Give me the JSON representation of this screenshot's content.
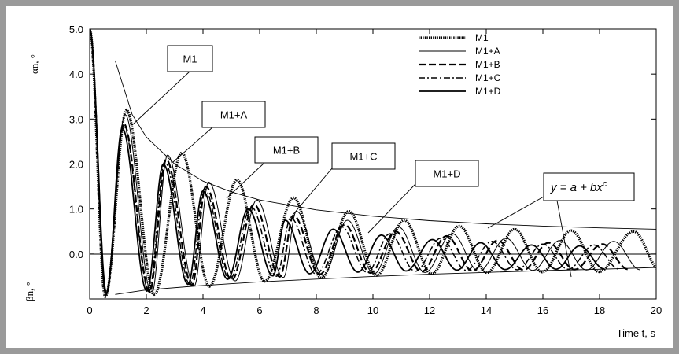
{
  "chart_data": {
    "type": "line",
    "title": "",
    "xlabel": "Time t, s",
    "ylabel_top": "αn, °",
    "ylabel_bottom": "βn, °",
    "xlim": [
      0,
      20
    ],
    "ylim": [
      -1.0,
      5.0
    ],
    "x_ticks": [
      "0",
      "2",
      "4",
      "6",
      "8",
      "10",
      "12",
      "14",
      "16",
      "18",
      "20"
    ],
    "y_ticks": [
      "5.0",
      "4.0",
      "3.0",
      "2.0",
      "1.0",
      "0.0"
    ],
    "grid": false,
    "legend_position": "top-right",
    "legend": [
      "M1",
      "M1+A",
      "M1+B",
      "M1+C",
      "M1+D"
    ],
    "annotations": [
      "M1",
      "M1+A",
      "M1+B",
      "M1+C",
      "M1+D"
    ],
    "fit_label": "y = a + bx",
    "fit_label_sup": "c",
    "series": [
      {
        "name": "M1",
        "style": "dotted",
        "period": 1.96,
        "peaks": [
          [
            1.3,
            3.2
          ],
          [
            3.25,
            2.25
          ],
          [
            5.2,
            1.65
          ],
          [
            7.2,
            1.25
          ],
          [
            9.15,
            0.95
          ],
          [
            11.1,
            0.75
          ],
          [
            13.05,
            0.62
          ],
          [
            15.0,
            0.55
          ],
          [
            17.0,
            0.52
          ],
          [
            19.2,
            0.5
          ]
        ]
      },
      {
        "name": "M1+A",
        "style": "thin",
        "period": 1.88,
        "peaks": [
          [
            1.25,
            3.1
          ],
          [
            2.75,
            2.2
          ],
          [
            4.2,
            1.6
          ],
          [
            5.9,
            1.2
          ],
          [
            7.3,
            0.95
          ],
          [
            9.1,
            0.75
          ],
          [
            10.9,
            0.6
          ],
          [
            12.8,
            0.45
          ],
          [
            14.7,
            0.35
          ],
          [
            16.6,
            0.3
          ],
          [
            18.5,
            0.28
          ]
        ]
      },
      {
        "name": "M1+B",
        "style": "dashed",
        "period": 1.83,
        "peaks": [
          [
            1.2,
            2.9
          ],
          [
            2.7,
            2.1
          ],
          [
            4.1,
            1.5
          ],
          [
            5.8,
            1.1
          ],
          [
            7.2,
            0.85
          ],
          [
            9.0,
            0.65
          ],
          [
            10.8,
            0.5
          ],
          [
            12.6,
            0.4
          ],
          [
            14.4,
            0.3
          ],
          [
            16.2,
            0.25
          ],
          [
            18.1,
            0.22
          ]
        ]
      },
      {
        "name": "M1+C",
        "style": "dashdot",
        "period": 1.79,
        "peaks": [
          [
            1.2,
            2.85
          ],
          [
            2.65,
            2.05
          ],
          [
            4.05,
            1.45
          ],
          [
            5.7,
            1.05
          ],
          [
            7.1,
            0.8
          ],
          [
            8.9,
            0.6
          ],
          [
            10.6,
            0.45
          ],
          [
            12.4,
            0.35
          ],
          [
            14.2,
            0.28
          ],
          [
            16.0,
            0.22
          ],
          [
            17.8,
            0.2
          ]
        ]
      },
      {
        "name": "M1+D",
        "style": "solid",
        "period": 1.74,
        "peaks": [
          [
            1.15,
            2.8
          ],
          [
            2.6,
            2.0
          ],
          [
            4.0,
            1.4
          ],
          [
            5.6,
            1.0
          ],
          [
            6.9,
            0.75
          ],
          [
            8.6,
            0.55
          ],
          [
            10.3,
            0.42
          ],
          [
            12.1,
            0.32
          ],
          [
            13.8,
            0.25
          ],
          [
            15.6,
            0.2
          ],
          [
            17.3,
            0.18
          ]
        ]
      },
      {
        "name": "",
        "style": "envelope",
        "x": [
          0.9,
          1.5,
          2,
          3,
          4,
          5,
          6,
          8,
          10,
          12,
          14,
          16,
          18,
          20
        ],
        "y": [
          4.3,
          3.1,
          2.6,
          2.0,
          1.62,
          1.38,
          1.2,
          0.98,
          0.84,
          0.74,
          0.67,
          0.62,
          0.58,
          0.55
        ]
      },
      {
        "name": "",
        "style": "envelope",
        "x": [
          0.9,
          2,
          4,
          6,
          8,
          10,
          12,
          14,
          16,
          18,
          20
        ],
        "y": [
          -0.9,
          -0.8,
          -0.7,
          -0.62,
          -0.56,
          -0.5,
          -0.45,
          -0.41,
          -0.37,
          -0.34,
          -0.3
        ]
      }
    ]
  }
}
